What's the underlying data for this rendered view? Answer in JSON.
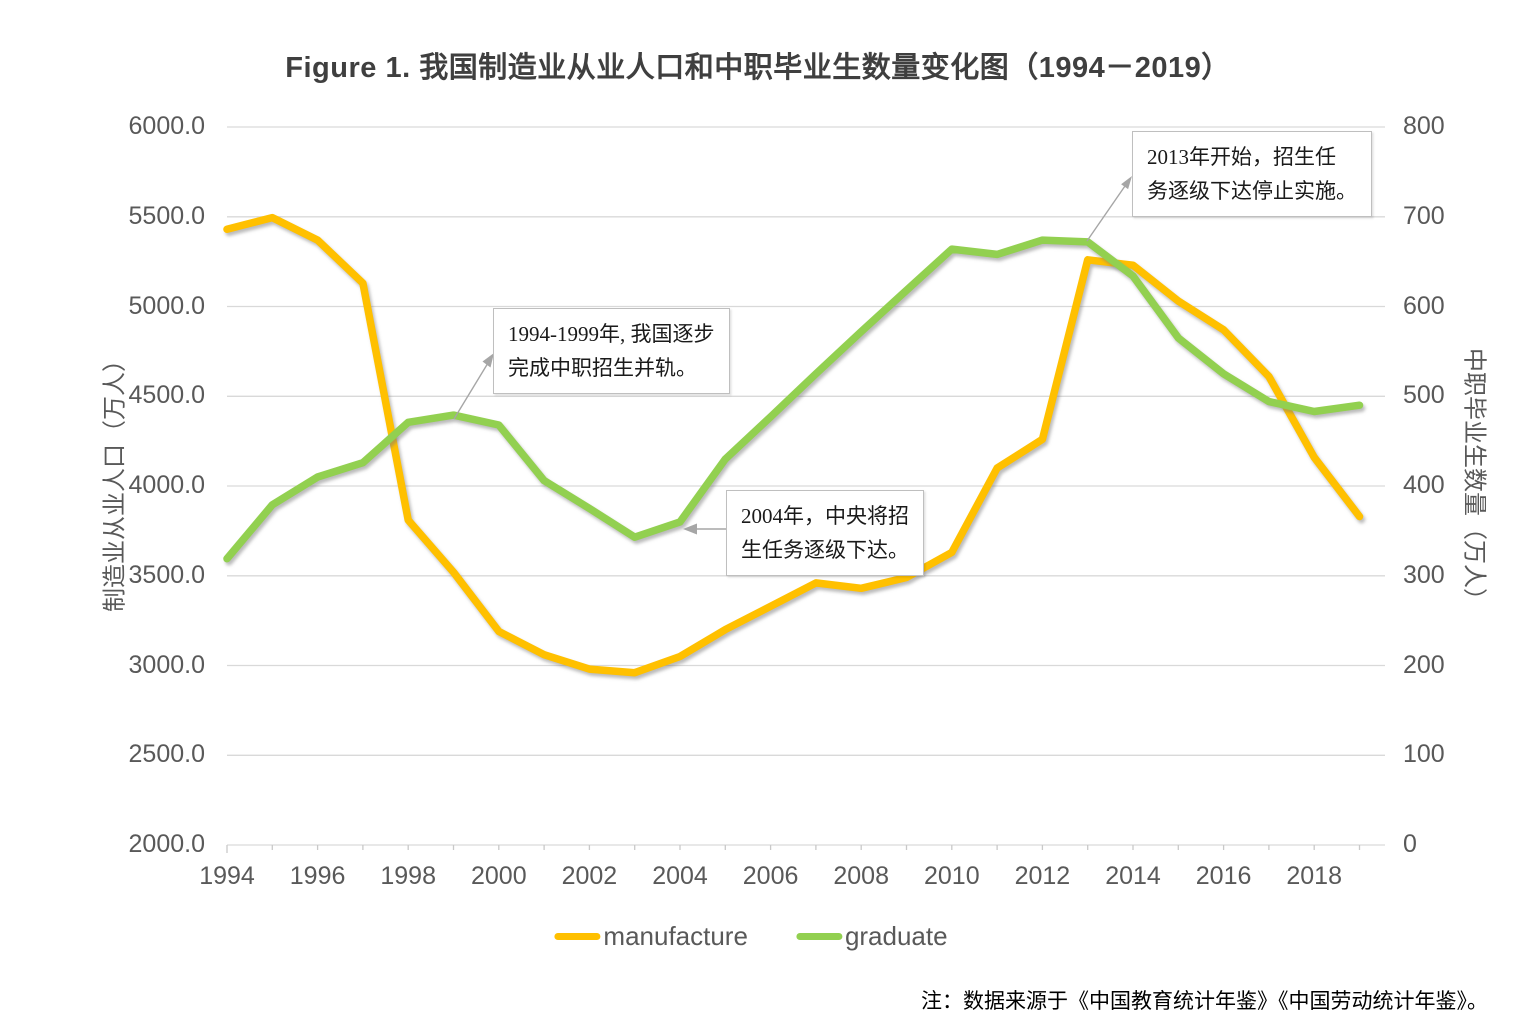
{
  "title": "Figure 1. 我国制造业从业人口和中职毕业生数量变化图（1994－2019）",
  "note": "注：数据来源于《中国教育统计年鉴》《中国劳动统计年鉴》。",
  "chart_data": {
    "type": "line",
    "x": [
      1994,
      1995,
      1996,
      1997,
      1998,
      1999,
      2000,
      2001,
      2002,
      2003,
      2004,
      2005,
      2006,
      2007,
      2008,
      2009,
      2010,
      2011,
      2012,
      2013,
      2014,
      2015,
      2016,
      2017,
      2018,
      2019
    ],
    "series": [
      {
        "name": "manufacture",
        "axis": "left",
        "color": "#FFC000",
        "values": [
          5430,
          5495,
          5370,
          5130,
          3810,
          3520,
          3190,
          3060,
          2980,
          2960,
          3050,
          3200,
          3330,
          3460,
          3430,
          3490,
          3630,
          4100,
          4260,
          5260,
          5230,
          5030,
          4870,
          4610,
          4160,
          3830
        ]
      },
      {
        "name": "graduate",
        "axis": "right",
        "color": "#92D050",
        "values": [
          319,
          379,
          410,
          426,
          471,
          479,
          468,
          406,
          375,
          343,
          360,
          430,
          477,
          525,
          572,
          618,
          664,
          658,
          674,
          672,
          634,
          565,
          525,
          494,
          483,
          490
        ]
      }
    ],
    "left_axis": {
      "title": "制造业从业人口（万人）",
      "min": 2000,
      "max": 6000,
      "step": 500,
      "tick_labels": [
        "6000.0",
        "5500.0",
        "5000.0",
        "4500.0",
        "4000.0",
        "3500.0",
        "3000.0",
        "2500.0",
        "2000.0"
      ]
    },
    "right_axis": {
      "title": "中职毕业生数量（万人）",
      "min": 0,
      "max": 800,
      "step": 100,
      "tick_labels": [
        "800",
        "700",
        "600",
        "500",
        "400",
        "300",
        "200",
        "100",
        "0"
      ]
    },
    "x_axis": {
      "tick_labels": [
        "1994",
        "1996",
        "1998",
        "2000",
        "2002",
        "2004",
        "2006",
        "2008",
        "2010",
        "2012",
        "2014",
        "2016",
        "2018"
      ]
    },
    "grid": true,
    "legend_position": "bottom",
    "legend": [
      {
        "label": "manufacture",
        "color": "#FFC000"
      },
      {
        "label": "graduate",
        "color": "#92D050"
      }
    ],
    "annotations": [
      {
        "text": "1994-1999年, 我国逐步\n完成中职招生并轨。",
        "target_year": 1999,
        "target_series": "graduate"
      },
      {
        "text": "2004年，中央将招\n生任务逐级下达。",
        "target_year": 2004,
        "target_series": "graduate"
      },
      {
        "text": "2013年开始，招生任\n务逐级下达停止实施。",
        "target_year": 2013,
        "target_series": "graduate"
      }
    ]
  }
}
